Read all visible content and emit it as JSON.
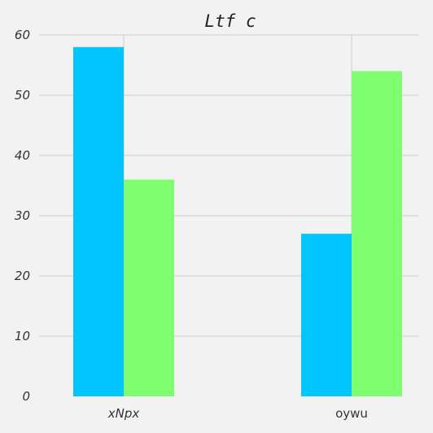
{
  "chart_data": {
    "type": "bar",
    "title": "Ltf c",
    "xlabel": "",
    "ylabel": "",
    "categories": [
      "xNpx",
      "oywu"
    ],
    "category_label_styles": [
      "italic",
      "normal"
    ],
    "series": [
      {
        "values": [
          58,
          27
        ],
        "color": "#00c5ff"
      },
      {
        "values": [
          36,
          54
        ],
        "color": "#7fff6f"
      }
    ],
    "ylim": [
      0,
      60
    ],
    "yticks": [
      0,
      10,
      20,
      30,
      40,
      50,
      60
    ],
    "ytick_labels": [
      "0",
      "10",
      "20",
      "30",
      "40",
      "50",
      "60"
    ],
    "grid": true,
    "legend": "none"
  }
}
